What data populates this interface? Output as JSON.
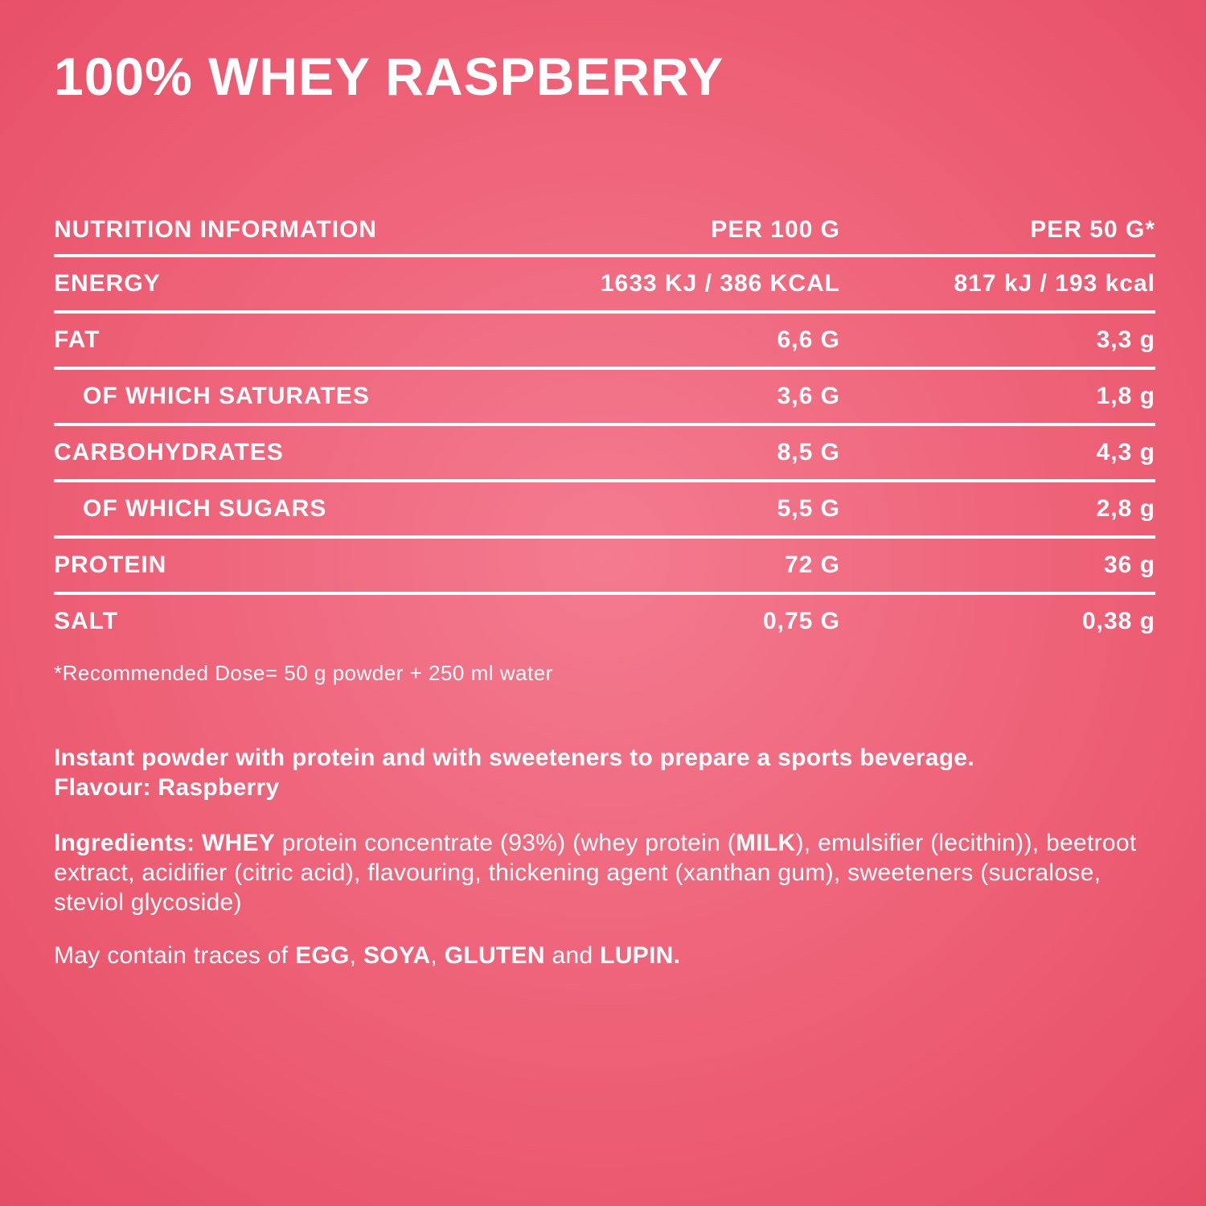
{
  "colors": {
    "background_center": "#f47b90",
    "background_edge": "#e64d64",
    "text": "#ffffff",
    "table_rule": "#ffffff"
  },
  "title": "100% WHEY RASPBERRY",
  "table": {
    "headers": {
      "col1": "NUTRITION INFORMATION",
      "col2": "PER 100 G",
      "col3": "PER 50 G*"
    },
    "rows": [
      {
        "label": "ENERGY",
        "per100": "1633 KJ / 386 KCAL",
        "per50": "817 kJ / 193 kcal",
        "indent": false
      },
      {
        "label": "FAT",
        "per100": "6,6 G",
        "per50": "3,3 g",
        "indent": false
      },
      {
        "label": "OF WHICH SATURATES",
        "per100": "3,6 G",
        "per50": "1,8 g",
        "indent": true
      },
      {
        "label": "CARBOHYDRATES",
        "per100": "8,5 G",
        "per50": "4,3 g",
        "indent": false
      },
      {
        "label": "OF WHICH SUGARS",
        "per100": "5,5 G",
        "per50": "2,8 g",
        "indent": true
      },
      {
        "label": "PROTEIN",
        "per100": "72 G",
        "per50": "36 g",
        "indent": false
      },
      {
        "label": "SALT",
        "per100": "0,75 G",
        "per50": "0,38 g",
        "indent": false
      }
    ],
    "footnote": "*Recommended Dose= 50 g powder + 250 ml water"
  },
  "description": {
    "line1": "Instant powder with protein and with sweeteners to prepare a sports beverage.",
    "line2": "Flavour: Raspberry"
  },
  "ingredients": {
    "segments": [
      {
        "text": "Ingredients: WHEY",
        "bold": true
      },
      {
        "text": " protein concentrate (93%) (whey protein (",
        "bold": false
      },
      {
        "text": "MILK",
        "bold": true
      },
      {
        "text": "), emulsifier (lecithin)), beetroot extract, acidifier (citric acid), flavouring, thickening agent (xanthan gum), sweeteners (sucralose, steviol glycoside)",
        "bold": false
      }
    ]
  },
  "allergens": {
    "segments": [
      {
        "text": "May contain traces of ",
        "bold": false
      },
      {
        "text": "EGG",
        "bold": true
      },
      {
        "text": ", ",
        "bold": false
      },
      {
        "text": "SOYA",
        "bold": true
      },
      {
        "text": ", ",
        "bold": false
      },
      {
        "text": "GLUTEN",
        "bold": true
      },
      {
        "text": " and ",
        "bold": false
      },
      {
        "text": "LUPIN",
        "bold": true
      },
      {
        "text": ".",
        "bold": true
      }
    ]
  }
}
